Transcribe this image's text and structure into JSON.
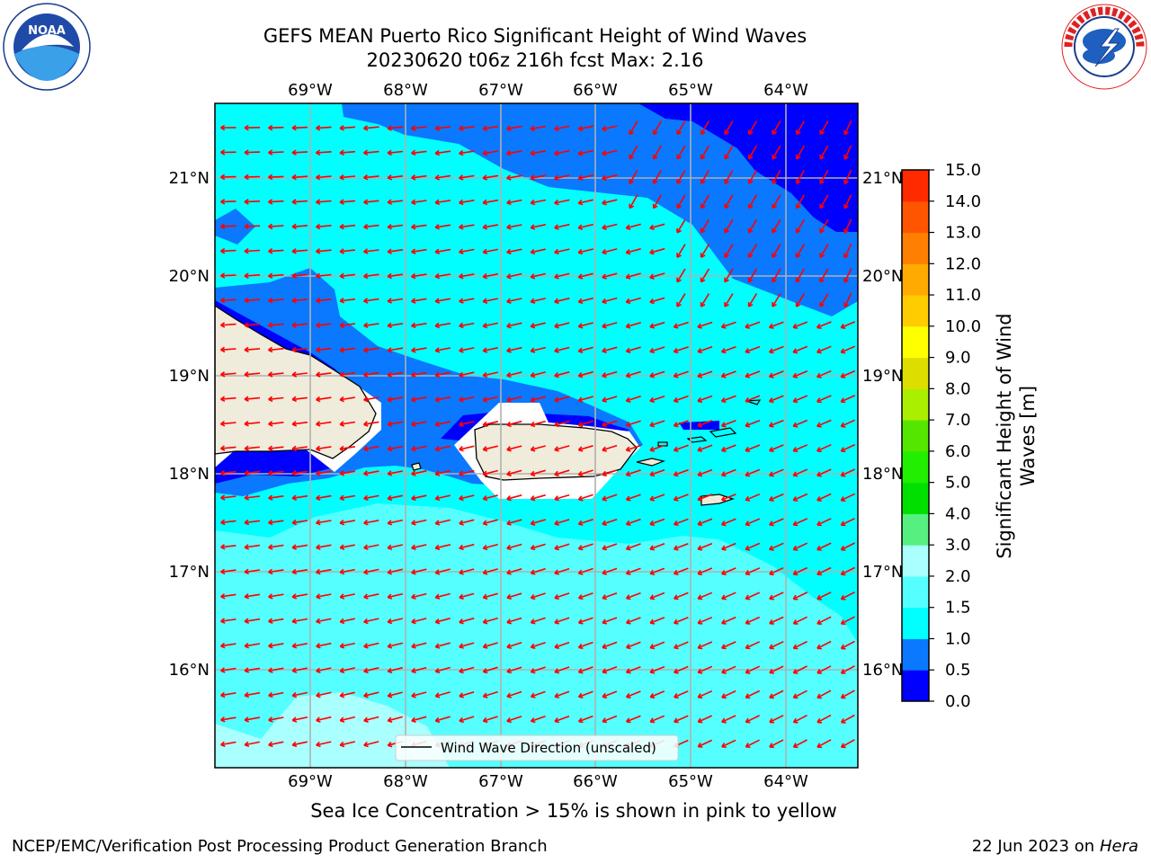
{
  "title": {
    "line1": "GEFS MEAN Puerto Rico Significant Height of Wind Waves",
    "line2": "20230620 t06z 216h fcst   Max: 2.16"
  },
  "map": {
    "lon_labels": [
      "69°W",
      "68°W",
      "67°W",
      "66°W",
      "65°W",
      "64°W"
    ],
    "lat_labels": [
      "21°N",
      "20°N",
      "19°N",
      "18°N",
      "17°N",
      "16°N"
    ],
    "legend_label": "Wind Wave Direction (unscaled)",
    "colors": {
      "land": "#efecdc",
      "level_0_0p5": "#0000ff",
      "level_0p5_1": "#0a78ff",
      "level_1_1p5": "#00ffff",
      "level_1p5_2": "#55ffff",
      "level_2_3": "#aaffff",
      "arrow": "#ff0000",
      "grid": "#b0b0b0"
    }
  },
  "colorbar": {
    "ticks": [
      "0.0",
      "0.5",
      "1.0",
      "1.5",
      "2.0",
      "3.0",
      "4.0",
      "5.0",
      "6.0",
      "7.0",
      "8.0",
      "9.0",
      "10.0",
      "11.0",
      "12.0",
      "13.0",
      "14.0",
      "15.0"
    ],
    "colors": [
      "#0000ff",
      "#0a78ff",
      "#00ffff",
      "#55ffff",
      "#aaffff",
      "#55f080",
      "#00e000",
      "#22ee00",
      "#55e600",
      "#aaee00",
      "#dddd00",
      "#ffff00",
      "#ffcc00",
      "#ffaa00",
      "#ff8000",
      "#ff5500",
      "#ff2a00",
      "#ff0000"
    ],
    "label_line1": "Significant Height of Wind",
    "label_line2": "Waves [m]"
  },
  "footer": {
    "sea_ice_note": "Sea Ice Concentration > 15% is shown in pink to yellow",
    "branch": "NCEP/EMC/Verification Post Processing Product Generation Branch",
    "date": "22 Jun 2023 on",
    "host": "Hera"
  },
  "logos": {
    "left": "noaa-logo",
    "right": "nws-logo"
  }
}
